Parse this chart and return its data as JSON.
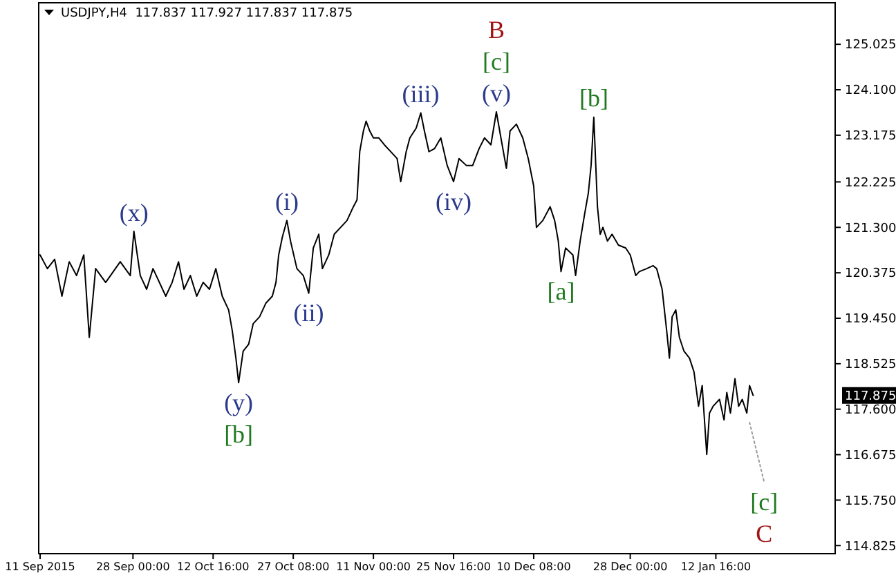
{
  "chart_data": {
    "type": "line",
    "title": "USDJPY,H4  117.837 117.927 117.837 117.875",
    "xlim": [
      "2015-09-10T18:00",
      "2016-02-03T12:00"
    ],
    "ylim": [
      114.66,
      125.87
    ],
    "xticks": [
      {
        "value": "2015-09-11T00:00",
        "label": "11 Sep 2015"
      },
      {
        "value": "2015-09-28T00:00",
        "label": "28 Sep 00:00"
      },
      {
        "value": "2015-10-12T16:00",
        "label": "12 Oct 16:00"
      },
      {
        "value": "2015-10-27T08:00",
        "label": "27 Oct 08:00"
      },
      {
        "value": "2015-11-11T00:00",
        "label": "11 Nov 00:00"
      },
      {
        "value": "2015-11-25T16:00",
        "label": "25 Nov 16:00"
      },
      {
        "value": "2015-12-10T08:00",
        "label": "10 Dec 08:00"
      },
      {
        "value": "2015-12-28T00:00",
        "label": "28 Dec 00:00"
      },
      {
        "value": "2016-01-12T16:00",
        "label": "12 Jan 16:00"
      }
    ],
    "yticks": [
      {
        "value": 125.025,
        "label": "125.025"
      },
      {
        "value": 124.1,
        "label": "124.100"
      },
      {
        "value": 123.175,
        "label": "123.175"
      },
      {
        "value": 122.225,
        "label": "122.225"
      },
      {
        "value": 121.3,
        "label": "121.300"
      },
      {
        "value": 120.375,
        "label": "120.375"
      },
      {
        "value": 119.45,
        "label": "119.450"
      },
      {
        "value": 118.525,
        "label": "118.525"
      },
      {
        "value": 117.6,
        "label": "117.600"
      },
      {
        "value": 116.675,
        "label": "116.675"
      },
      {
        "value": 115.75,
        "label": "115.750"
      },
      {
        "value": 114.825,
        "label": "114.825"
      }
    ],
    "grid": false,
    "marker": "none",
    "line_style": "solid",
    "series": [
      {
        "color": "#000000",
        "x": [
          "2015-09-11T00:00",
          "2015-09-12T08:00",
          "2015-09-13T16:00",
          "2015-09-15T00:00",
          "2015-09-16T08:00",
          "2015-09-17T16:00",
          "2015-09-19T00:00",
          "2015-09-20T00:00",
          "2015-09-21T04:00",
          "2015-09-23T00:00",
          "2015-09-25T16:00",
          "2015-09-27T12:00",
          "2015-09-28T04:00",
          "2015-09-29T08:00",
          "2015-09-30T12:00",
          "2015-10-01T16:00",
          "2015-10-04T00:00",
          "2015-10-05T04:00",
          "2015-10-06T08:00",
          "2015-10-07T08:00",
          "2015-10-08T12:00",
          "2015-10-09T16:00",
          "2015-10-10T20:00",
          "2015-10-12T00:00",
          "2015-10-13T04:00",
          "2015-10-14T08:00",
          "2015-10-15T12:00",
          "2015-10-16T04:00",
          "2015-10-16T20:00",
          "2015-10-17T08:00",
          "2015-10-18T04:00",
          "2015-10-19T04:00",
          "2015-10-20T00:00",
          "2015-10-21T04:00",
          "2015-10-22T08:00",
          "2015-10-23T12:00",
          "2015-10-24T04:00",
          "2015-10-24T16:00",
          "2015-10-25T08:00",
          "2015-10-26T04:00",
          "2015-10-26T20:00",
          "2015-10-28T00:00",
          "2015-10-29T04:00",
          "2015-10-30T04:00",
          "2015-10-31T00:00",
          "2015-11-01T00:00",
          "2015-11-01T16:00",
          "2015-11-02T20:00",
          "2015-11-03T20:00",
          "2015-11-05T00:00",
          "2015-11-06T04:00",
          "2015-11-07T08:00",
          "2015-11-08T00:00",
          "2015-11-08T12:00",
          "2015-11-09T04:00",
          "2015-11-09T16:00",
          "2015-11-10T08:00",
          "2015-11-11T00:00",
          "2015-11-12T00:00",
          "2015-11-13T00:00",
          "2015-11-14T04:00",
          "2015-11-15T08:00",
          "2015-11-16T00:00",
          "2015-11-17T00:00",
          "2015-11-17T16:00",
          "2015-11-18T20:00",
          "2015-11-19T16:00",
          "2015-11-20T08:00",
          "2015-11-21T04:00",
          "2015-11-22T04:00",
          "2015-11-23T08:00",
          "2015-11-24T12:00",
          "2015-11-25T16:00",
          "2015-11-26T16:00",
          "2015-11-28T00:00",
          "2015-11-29T04:00",
          "2015-11-30T08:00",
          "2015-12-01T08:00",
          "2015-12-02T12:00",
          "2015-12-03T12:00",
          "2015-12-04T08:00",
          "2015-12-05T08:00",
          "2015-12-06T00:00",
          "2015-12-07T04:00",
          "2015-12-08T08:00",
          "2015-12-09T08:00",
          "2015-12-10T08:00",
          "2015-12-10T20:00",
          "2015-12-12T00:00",
          "2015-12-13T08:00",
          "2015-12-14T04:00",
          "2015-12-14T20:00",
          "2015-12-15T08:00",
          "2015-12-16T04:00",
          "2015-12-17T12:00",
          "2015-12-18T00:00",
          "2015-12-18T20:00",
          "2015-12-19T16:00",
          "2015-12-20T08:00",
          "2015-12-20T20:00",
          "2015-12-21T08:00",
          "2015-12-22T00:00",
          "2015-12-22T12:00",
          "2015-12-23T00:00",
          "2015-12-23T20:00",
          "2015-12-24T16:00",
          "2015-12-25T20:00",
          "2015-12-27T04:00",
          "2015-12-28T00:00",
          "2015-12-29T00:00",
          "2015-12-29T16:00",
          "2015-12-31T00:00",
          "2016-01-01T04:00",
          "2016-01-01T20:00",
          "2016-01-02T20:00",
          "2016-01-03T16:00",
          "2016-01-04T04:00",
          "2016-01-04T16:00",
          "2016-01-05T08:00",
          "2016-01-06T00:00",
          "2016-01-06T20:00",
          "2016-01-07T20:00",
          "2016-01-08T16:00",
          "2016-01-09T12:00",
          "2016-01-10T04:00",
          "2016-01-11T00:00",
          "2016-01-11T12:00",
          "2016-01-12T04:00",
          "2016-01-13T08:00",
          "2016-01-14T04:00",
          "2016-01-14T16:00",
          "2016-01-15T08:00",
          "2016-01-16T04:00",
          "2016-01-16T20:00",
          "2016-01-17T12:00",
          "2016-01-18T08:00",
          "2016-01-18T20:00",
          "2016-01-19T12:00"
        ],
        "values": [
          120.74,
          120.46,
          120.65,
          119.9,
          120.6,
          120.32,
          120.74,
          119.06,
          120.46,
          120.18,
          120.6,
          120.32,
          121.22,
          120.32,
          120.04,
          120.46,
          119.9,
          120.18,
          120.6,
          120.04,
          120.32,
          119.9,
          120.18,
          120.04,
          120.46,
          119.9,
          119.62,
          119.2,
          118.64,
          118.14,
          118.78,
          118.92,
          119.34,
          119.48,
          119.76,
          119.9,
          120.18,
          120.74,
          121.1,
          121.44,
          121.02,
          120.46,
          120.32,
          119.96,
          120.88,
          121.16,
          120.46,
          120.74,
          121.16,
          121.3,
          121.44,
          121.72,
          121.86,
          122.84,
          123.26,
          123.46,
          123.26,
          123.12,
          123.12,
          122.98,
          122.84,
          122.7,
          122.23,
          122.84,
          123.12,
          123.32,
          123.63,
          123.26,
          122.84,
          122.9,
          123.12,
          122.56,
          122.23,
          122.7,
          122.56,
          122.56,
          122.9,
          123.12,
          122.98,
          123.65,
          123.12,
          122.5,
          123.26,
          123.4,
          123.12,
          122.7,
          122.14,
          121.3,
          121.44,
          121.72,
          121.44,
          121.02,
          120.4,
          120.88,
          120.74,
          120.32,
          121.02,
          121.58,
          122.0,
          122.56,
          123.54,
          121.72,
          121.16,
          121.3,
          121.02,
          121.16,
          120.94,
          120.88,
          120.74,
          120.32,
          120.4,
          120.46,
          120.52,
          120.46,
          120.04,
          119.2,
          118.64,
          119.48,
          119.62,
          119.06,
          118.78,
          118.64,
          118.36,
          117.66,
          118.08,
          116.68,
          117.52,
          117.66,
          117.8,
          117.38,
          117.94,
          117.52,
          118.22,
          117.66,
          117.8,
          117.52,
          118.08,
          117.88
        ]
      },
      {
        "color": "#9a9a9a",
        "line_style": "dotted",
        "x": [
          "2016-01-18T20:00",
          "2016-01-21T12:00"
        ],
        "values": [
          117.33,
          116.12
        ]
      }
    ],
    "annotations": [
      "117.875",
      {
        "text": "(x)",
        "x": "2015-09-28T04:00",
        "y": 121.22
      },
      {
        "text": "(y)",
        "x": "2015-10-17T08:00",
        "y": 118.14
      },
      {
        "text": "[b]",
        "x": "2015-10-17T08:00",
        "y": 118.14
      },
      {
        "text": "(i)",
        "x": "2015-10-26T04:00",
        "y": 121.44
      },
      {
        "text": "(ii)",
        "x": "2015-10-30T04:00",
        "y": 119.96
      },
      {
        "text": "(iii)",
        "x": "2015-11-19T16:00",
        "y": 123.63
      },
      {
        "text": "(iv)",
        "x": "2015-11-25T16:00",
        "y": 122.23
      },
      {
        "text": "(v)",
        "x": "2015-12-03T12:00",
        "y": 123.65
      },
      {
        "text": "[c]",
        "x": "2015-12-03T12:00",
        "y": 123.65
      },
      "B",
      {
        "text": "[b]",
        "x": "2015-12-21T08:00",
        "y": 123.54
      },
      {
        "text": "[a]",
        "x": "2015-12-15T08:00",
        "y": 120.4
      },
      {
        "text": "[c]",
        "x": "2016-01-21T12:00",
        "y": 116.12
      },
      {
        "text": "C",
        "x": "2016-01-21T12:00",
        "y": 116.12
      }
    ]
  }
}
